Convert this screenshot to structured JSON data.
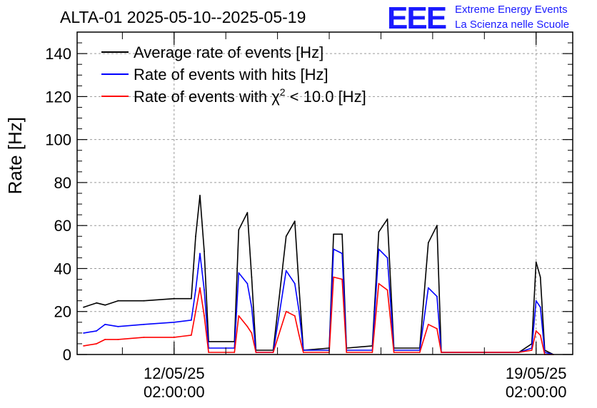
{
  "header": {
    "title": "ALTA-01 2025-05-10--2025-05-19",
    "logo_text": "EEE",
    "brand_line1": "Extreme Energy Events",
    "brand_line2": "La Scienza nelle Scuole",
    "brand_color": "#1a1aff"
  },
  "chart_data": {
    "type": "line",
    "title": "ALTA-01 2025-05-10--2025-05-19",
    "ylabel": "Rate [Hz]",
    "xlabel": "",
    "ylim": [
      0,
      150
    ],
    "yticks": [
      0,
      20,
      40,
      60,
      80,
      100,
      120,
      140
    ],
    "xlim": [
      "2025-05-10T05:00:00",
      "2025-05-19T19:00:00"
    ],
    "xticks": [
      {
        "x": "2025-05-12T02:00:00",
        "date": "12/05/25",
        "time": "02:00:00"
      },
      {
        "x": "2025-05-19T02:00:00",
        "date": "19/05/25",
        "time": "02:00:00"
      }
    ],
    "grid": true,
    "legend_position": "top-left",
    "series": [
      {
        "name": "Average rate of events [Hz]",
        "color": "#000000",
        "points": [
          [
            "2025-05-10T08:00",
            "22"
          ],
          [
            "2025-05-10T14:00",
            "24"
          ],
          [
            "2025-05-10T18:00",
            "23"
          ],
          [
            "2025-05-11T00:00",
            "25"
          ],
          [
            "2025-05-11T12:00",
            "25"
          ],
          [
            "2025-05-12T02:00",
            "26"
          ],
          [
            "2025-05-12T10:00",
            "26"
          ],
          [
            "2025-05-12T12:00",
            "55"
          ],
          [
            "2025-05-12T14:00",
            "74"
          ],
          [
            "2025-05-12T16:00",
            "48"
          ],
          [
            "2025-05-12T18:00",
            "6"
          ],
          [
            "2025-05-13T06:00",
            "6"
          ],
          [
            "2025-05-13T08:00",
            "58"
          ],
          [
            "2025-05-13T12:00",
            "66"
          ],
          [
            "2025-05-13T14:00",
            "36"
          ],
          [
            "2025-05-13T16:00",
            "2"
          ],
          [
            "2025-05-14T00:00",
            "2"
          ],
          [
            "2025-05-14T06:00",
            "55"
          ],
          [
            "2025-05-14T10:00",
            "62"
          ],
          [
            "2025-05-14T12:00",
            "31"
          ],
          [
            "2025-05-14T14:00",
            "2"
          ],
          [
            "2025-05-15T02:00",
            "3"
          ],
          [
            "2025-05-15T04:00",
            "56"
          ],
          [
            "2025-05-15T08:00",
            "56"
          ],
          [
            "2025-05-15T10:00",
            "3"
          ],
          [
            "2025-05-15T22:00",
            "4"
          ],
          [
            "2025-05-16T01:00",
            "57"
          ],
          [
            "2025-05-16T05:00",
            "63"
          ],
          [
            "2025-05-16T08:00",
            "3"
          ],
          [
            "2025-05-16T20:00",
            "3"
          ],
          [
            "2025-05-17T00:00",
            "52"
          ],
          [
            "2025-05-17T04:00",
            "60"
          ],
          [
            "2025-05-17T06:00",
            "1"
          ],
          [
            "2025-05-18T18:00",
            "1"
          ],
          [
            "2025-05-19T00:00",
            "5"
          ],
          [
            "2025-05-19T02:00",
            "43"
          ],
          [
            "2025-05-19T04:00",
            "36"
          ],
          [
            "2025-05-19T06:00",
            "2"
          ],
          [
            "2025-05-19T10:00",
            "0"
          ]
        ]
      },
      {
        "name": "Rate of events with hits [Hz]",
        "color": "#0000ff",
        "points": [
          [
            "2025-05-10T08:00",
            "10"
          ],
          [
            "2025-05-10T14:00",
            "11"
          ],
          [
            "2025-05-10T18:00",
            "14"
          ],
          [
            "2025-05-11T00:00",
            "13"
          ],
          [
            "2025-05-11T12:00",
            "14"
          ],
          [
            "2025-05-12T02:00",
            "15"
          ],
          [
            "2025-05-12T10:00",
            "16"
          ],
          [
            "2025-05-12T12:00",
            "30"
          ],
          [
            "2025-05-12T14:00",
            "47"
          ],
          [
            "2025-05-12T16:00",
            "30"
          ],
          [
            "2025-05-12T18:00",
            "3"
          ],
          [
            "2025-05-13T06:00",
            "3"
          ],
          [
            "2025-05-13T08:00",
            "38"
          ],
          [
            "2025-05-13T12:00",
            "33"
          ],
          [
            "2025-05-13T14:00",
            "22"
          ],
          [
            "2025-05-13T16:00",
            "1"
          ],
          [
            "2025-05-14T00:00",
            "1"
          ],
          [
            "2025-05-14T06:00",
            "39"
          ],
          [
            "2025-05-14T10:00",
            "33"
          ],
          [
            "2025-05-14T12:00",
            "20"
          ],
          [
            "2025-05-14T14:00",
            "2"
          ],
          [
            "2025-05-15T02:00",
            "2"
          ],
          [
            "2025-05-15T04:00",
            "49"
          ],
          [
            "2025-05-15T08:00",
            "47"
          ],
          [
            "2025-05-15T10:00",
            "2"
          ],
          [
            "2025-05-15T22:00",
            "2"
          ],
          [
            "2025-05-16T01:00",
            "49"
          ],
          [
            "2025-05-16T05:00",
            "45"
          ],
          [
            "2025-05-16T08:00",
            "2"
          ],
          [
            "2025-05-16T20:00",
            "2"
          ],
          [
            "2025-05-17T00:00",
            "31"
          ],
          [
            "2025-05-17T04:00",
            "27"
          ],
          [
            "2025-05-17T06:00",
            "1"
          ],
          [
            "2025-05-18T18:00",
            "1"
          ],
          [
            "2025-05-19T00:00",
            "3"
          ],
          [
            "2025-05-19T02:00",
            "25"
          ],
          [
            "2025-05-19T04:00",
            "22"
          ],
          [
            "2025-05-19T06:00",
            "1"
          ],
          [
            "2025-05-19T10:00",
            "0"
          ]
        ]
      },
      {
        "name": "Rate of events with χ2 < 10.0 [Hz]",
        "legend_label": "Rate of events with χ",
        "legend_sup": "2",
        "legend_suffix": " < 10.0 [Hz]",
        "color": "#ff0000",
        "points": [
          [
            "2025-05-10T08:00",
            "4"
          ],
          [
            "2025-05-10T14:00",
            "5"
          ],
          [
            "2025-05-10T18:00",
            "7"
          ],
          [
            "2025-05-11T00:00",
            "7"
          ],
          [
            "2025-05-11T12:00",
            "8"
          ],
          [
            "2025-05-12T02:00",
            "8"
          ],
          [
            "2025-05-12T10:00",
            "9"
          ],
          [
            "2025-05-12T12:00",
            "20"
          ],
          [
            "2025-05-12T14:00",
            "31"
          ],
          [
            "2025-05-12T16:00",
            "18"
          ],
          [
            "2025-05-12T18:00",
            "1"
          ],
          [
            "2025-05-13T06:00",
            "1"
          ],
          [
            "2025-05-13T08:00",
            "18"
          ],
          [
            "2025-05-13T12:00",
            "13"
          ],
          [
            "2025-05-13T14:00",
            "10"
          ],
          [
            "2025-05-13T16:00",
            "1"
          ],
          [
            "2025-05-14T00:00",
            "1"
          ],
          [
            "2025-05-14T06:00",
            "20"
          ],
          [
            "2025-05-14T10:00",
            "18"
          ],
          [
            "2025-05-14T12:00",
            "9"
          ],
          [
            "2025-05-14T14:00",
            "1"
          ],
          [
            "2025-05-15T02:00",
            "1"
          ],
          [
            "2025-05-15T04:00",
            "36"
          ],
          [
            "2025-05-15T08:00",
            "35"
          ],
          [
            "2025-05-15T10:00",
            "1"
          ],
          [
            "2025-05-15T22:00",
            "1"
          ],
          [
            "2025-05-16T01:00",
            "33"
          ],
          [
            "2025-05-16T05:00",
            "30"
          ],
          [
            "2025-05-16T08:00",
            "1"
          ],
          [
            "2025-05-16T20:00",
            "1"
          ],
          [
            "2025-05-17T00:00",
            "14"
          ],
          [
            "2025-05-17T04:00",
            "12"
          ],
          [
            "2025-05-17T06:00",
            "1"
          ],
          [
            "2025-05-18T18:00",
            "1"
          ],
          [
            "2025-05-19T00:00",
            "2"
          ],
          [
            "2025-05-19T02:00",
            "11"
          ],
          [
            "2025-05-19T04:00",
            "9"
          ],
          [
            "2025-05-19T06:00",
            "0"
          ],
          [
            "2025-05-19T10:00",
            "0"
          ]
        ]
      }
    ]
  }
}
